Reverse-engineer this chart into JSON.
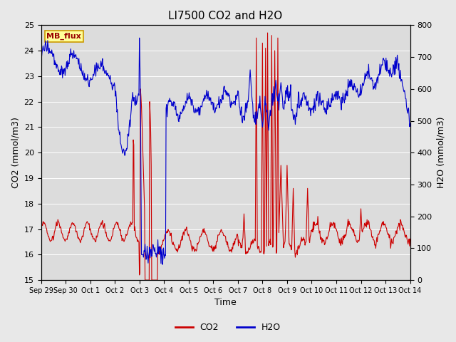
{
  "title": "LI7500 CO2 and H2O",
  "xlabel": "Time",
  "ylabel_left": "CO2 (mmol/m3)",
  "ylabel_right": "H2O (mmol/m3)",
  "ylim_left": [
    15.0,
    25.0
  ],
  "ylim_right": [
    0,
    800
  ],
  "yticks_left": [
    15.0,
    16.0,
    17.0,
    18.0,
    19.0,
    20.0,
    21.0,
    22.0,
    23.0,
    24.0,
    25.0
  ],
  "yticks_right": [
    0,
    100,
    200,
    300,
    400,
    500,
    600,
    700,
    800
  ],
  "xtick_labels": [
    "Sep 29",
    "Sep 30",
    "Oct 1",
    "Oct 2",
    "Oct 3",
    "Oct 4",
    "Oct 5",
    "Oct 6",
    "Oct 7",
    "Oct 8",
    "Oct 9",
    "Oct 10",
    "Oct 11",
    "Oct 12",
    "Oct 13",
    "Oct 14"
  ],
  "co2_color": "#cc0000",
  "h2o_color": "#0000cc",
  "background_color": "#e8e8e8",
  "plot_bg_color": "#dcdcdc",
  "grid_color": "#ffffff",
  "label_box_text": "MB_flux",
  "label_box_facecolor": "#ffff99",
  "label_box_edgecolor": "#cc9900",
  "legend_co2": "CO2",
  "legend_h2o": "H2O",
  "line_width": 0.8,
  "title_fontsize": 11,
  "axis_fontsize": 9,
  "tick_fontsize": 8
}
